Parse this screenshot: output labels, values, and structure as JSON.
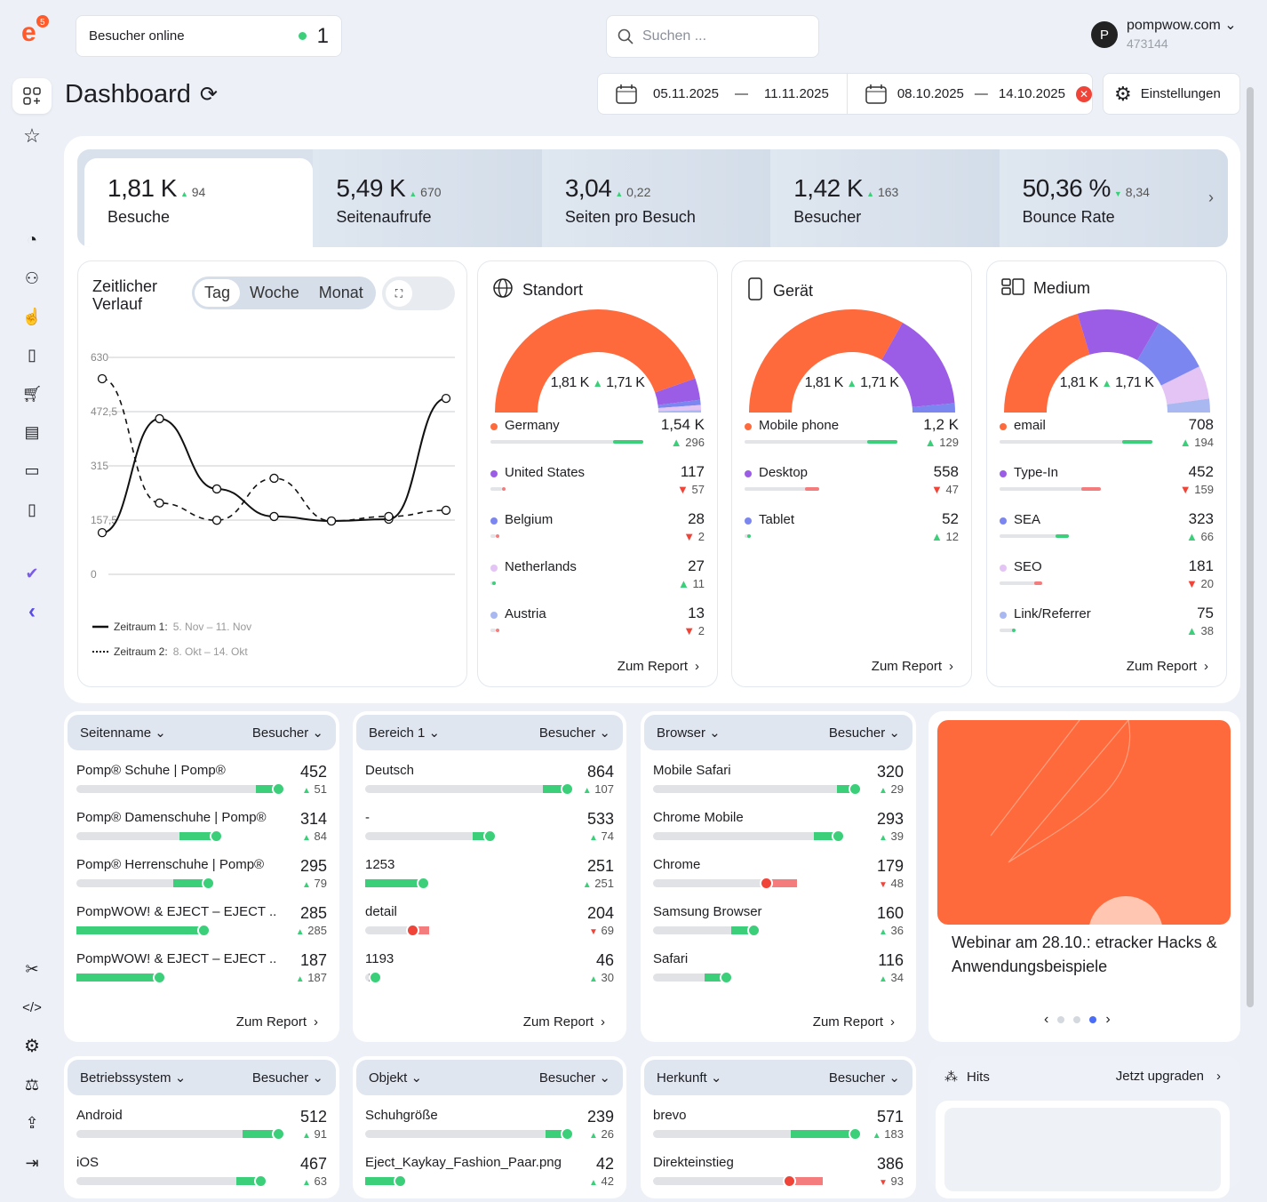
{
  "header": {
    "logo_badge": "5",
    "visitors_label": "Besucher online",
    "visitors_count": "1",
    "search_placeholder": "Suchen ...",
    "account_initial": "P",
    "account_name": "pompwow.com",
    "account_id": "473144"
  },
  "page": {
    "title": "Dashboard"
  },
  "dates": {
    "p1_start": "05.11.2025",
    "p1_end": "11.11.2025",
    "p2_start": "08.10.2025",
    "p2_end": "14.10.2025",
    "sep": "—"
  },
  "settings_label": "Einstellungen",
  "kpis": [
    {
      "value": "1,81 K",
      "delta": "94",
      "dir": "up",
      "label": "Besuche"
    },
    {
      "value": "5,49 K",
      "delta": "670",
      "dir": "up",
      "label": "Seitenaufrufe"
    },
    {
      "value": "3,04",
      "delta": "0,22",
      "dir": "up",
      "label": "Seiten pro Besuch"
    },
    {
      "value": "1,42 K",
      "delta": "163",
      "dir": "up",
      "label": "Besucher"
    },
    {
      "value": "50,36 %",
      "delta": "8,34",
      "dir": "down",
      "label": "Bounce Rate"
    }
  ],
  "timeline": {
    "title_1": "Zeitlicher",
    "title_2": "Verlauf",
    "toggle": [
      "Tag",
      "Woche",
      "Monat"
    ],
    "active": "Tag"
  },
  "chart_data": {
    "type": "line",
    "ylim": [
      0,
      630
    ],
    "yticks": [
      "0",
      "157,5",
      "315",
      "472,5",
      "630"
    ],
    "grid": true,
    "legend": "bottom-left",
    "series": [
      {
        "name": "Zeitraum 1:",
        "range": "5. Nov – 11. Nov",
        "style": "solid",
        "values": [
          121,
          452,
          248,
          168,
          155,
          160,
          511
        ]
      },
      {
        "name": "Zeitraum 2:",
        "range": "8. Okt – 14. Okt",
        "style": "dashed",
        "values": [
          568,
          207,
          157,
          279,
          155,
          168,
          186
        ]
      }
    ]
  },
  "colors": {
    "orange": "#ff6a3d",
    "purple": "#9b5de5",
    "blue": "#7b86f0",
    "lilac": "#e3c4f5",
    "lightblue": "#a9b8f0",
    "green": "#3ccf7a",
    "red": "#f04438"
  },
  "report_label": "Zum Report",
  "gauges": [
    {
      "title": "Standort",
      "icon": "globe-icon",
      "total": "1,81 K",
      "prev": "1,71 K",
      "items": [
        {
          "name": "Germany",
          "value": "1,54 K",
          "delta": "296",
          "dir": "up",
          "color": "#ff6a3d",
          "num": 1540
        },
        {
          "name": "United States",
          "value": "117",
          "delta": "57",
          "dir": "down",
          "color": "#9b5de5",
          "num": 117
        },
        {
          "name": "Belgium",
          "value": "28",
          "delta": "2",
          "dir": "down",
          "color": "#7b86f0",
          "num": 28
        },
        {
          "name": "Netherlands",
          "value": "27",
          "delta": "11",
          "dir": "up",
          "color": "#e3c4f5",
          "num": 27
        },
        {
          "name": "Austria",
          "value": "13",
          "delta": "2",
          "dir": "down",
          "color": "#a9b8f0",
          "num": 13
        }
      ]
    },
    {
      "title": "Gerät",
      "icon": "phone-icon",
      "total": "1,81 K",
      "prev": "1,71 K",
      "items": [
        {
          "name": "Mobile phone",
          "value": "1,2 K",
          "delta": "129",
          "dir": "up",
          "color": "#ff6a3d",
          "num": 1200
        },
        {
          "name": "Desktop",
          "value": "558",
          "delta": "47",
          "dir": "down",
          "color": "#9b5de5",
          "num": 558
        },
        {
          "name": "Tablet",
          "value": "52",
          "delta": "12",
          "dir": "up",
          "color": "#7b86f0",
          "num": 52
        }
      ]
    },
    {
      "title": "Medium",
      "icon": "medium-icon",
      "total": "1,81 K",
      "prev": "1,71 K",
      "items": [
        {
          "name": "email",
          "value": "708",
          "delta": "194",
          "dir": "up",
          "color": "#ff6a3d",
          "num": 708
        },
        {
          "name": "Type-In",
          "value": "452",
          "delta": "159",
          "dir": "down",
          "color": "#9b5de5",
          "num": 452
        },
        {
          "name": "SEA",
          "value": "323",
          "delta": "66",
          "dir": "up",
          "color": "#7b86f0",
          "num": 323
        },
        {
          "name": "SEO",
          "value": "181",
          "delta": "20",
          "dir": "down",
          "color": "#e3c4f5",
          "num": 181
        },
        {
          "name": "Link/Referrer",
          "value": "75",
          "delta": "38",
          "dir": "up",
          "color": "#a9b8f0",
          "num": 75
        }
      ]
    }
  ],
  "tables": [
    {
      "dim": "Seitenname",
      "metric": "Besucher",
      "rows": [
        [
          "Pomp® Schuhe | Pomp®",
          452,
          51,
          "up"
        ],
        [
          "Pomp® Damenschuhe | Pomp®",
          314,
          84,
          "up"
        ],
        [
          "Pomp® Herrenschuhe | Pomp®",
          295,
          79,
          "up"
        ],
        [
          "PompWOW! & EJECT – EJECT ...",
          285,
          285,
          "up"
        ],
        [
          "PompWOW! & EJECT – EJECT ...",
          187,
          187,
          "up"
        ]
      ]
    },
    {
      "dim": "Bereich 1",
      "metric": "Besucher",
      "rows": [
        [
          "Deutsch",
          864,
          107,
          "up"
        ],
        [
          "-",
          533,
          74,
          "up"
        ],
        [
          "1253",
          251,
          251,
          "up"
        ],
        [
          "detail",
          204,
          69,
          "down"
        ],
        [
          "1193",
          46,
          30,
          "up"
        ]
      ]
    },
    {
      "dim": "Browser",
      "metric": "Besucher",
      "rows": [
        [
          "Mobile Safari",
          320,
          29,
          "up"
        ],
        [
          "Chrome Mobile",
          293,
          39,
          "up"
        ],
        [
          "Chrome",
          179,
          48,
          "down"
        ],
        [
          "Samsung Browser",
          160,
          36,
          "up"
        ],
        [
          "Safari",
          116,
          34,
          "up"
        ]
      ]
    },
    {
      "dim": "Betriebssystem",
      "metric": "Besucher",
      "rows": [
        [
          "Android",
          512,
          91,
          "up"
        ],
        [
          "iOS",
          467,
          63,
          "up"
        ]
      ]
    },
    {
      "dim": "Objekt",
      "metric": "Besucher",
      "rows": [
        [
          "Schuhgröße",
          239,
          26,
          "up"
        ],
        [
          "Eject_Kaykay_Fashion_Paar.png",
          42,
          42,
          "up"
        ]
      ]
    },
    {
      "dim": "Herkunft",
      "metric": "Besucher",
      "rows": [
        [
          "brevo",
          571,
          183,
          "up"
        ],
        [
          "Direkteinstieg",
          386,
          93,
          "down"
        ]
      ]
    }
  ],
  "promo": {
    "title": "Webinar am 28.10.: etracker Hacks & Anwendungsbeispiele",
    "slides": 3,
    "active_slide": 3
  },
  "hits": {
    "label": "Hits",
    "upgrade": "Jetzt upgraden"
  }
}
